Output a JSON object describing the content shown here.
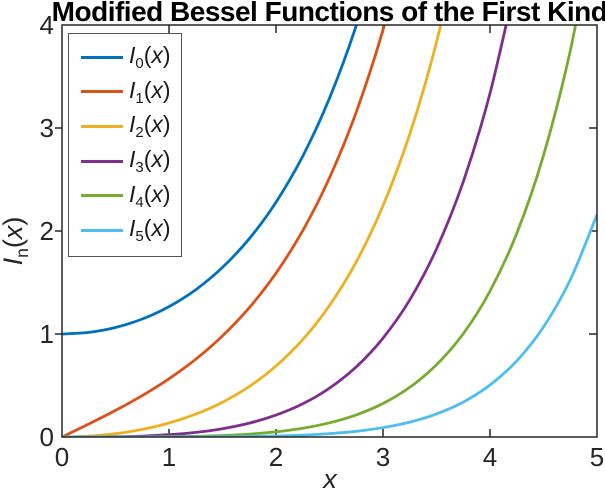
{
  "title": "Modified Bessel Functions of the First Kind",
  "xlabel": "x",
  "ylabel": {
    "base": "I",
    "sub": "n",
    "open": "(",
    "var": "x",
    "close": ")"
  },
  "axis_color": "#262626",
  "chart_data": {
    "type": "line",
    "title": "Modified Bessel Functions of the First Kind",
    "xlabel": "x",
    "ylabel": "I_n(x)",
    "xlim": [
      0,
      5
    ],
    "ylim": [
      0,
      4
    ],
    "xticks": [
      0,
      1,
      2,
      3,
      4,
      5
    ],
    "yticks": [
      0,
      1,
      2,
      3,
      4
    ],
    "grid": false,
    "legend_position": "top-left",
    "x": [
      0,
      0.25,
      0.5,
      0.75,
      1,
      1.25,
      1.5,
      1.75,
      2,
      2.25,
      2.5,
      2.75,
      3,
      3.25,
      3.5,
      3.75,
      4,
      4.25,
      4.5,
      4.75,
      5
    ],
    "series": [
      {
        "name": "I_0(x)",
        "base": "I",
        "sub": "0",
        "open": "(",
        "var": "x",
        "close": ")",
        "color": "#0072BD",
        "values": [
          1.0,
          1.0157,
          1.0635,
          1.1456,
          1.2661,
          1.4305,
          1.6467,
          1.9253,
          2.2796,
          2.7271,
          3.2898,
          3.9959,
          4.8808,
          null,
          null,
          null,
          null,
          null,
          null,
          null,
          null
        ]
      },
      {
        "name": "I_1(x)",
        "base": "I",
        "sub": "1",
        "open": "(",
        "var": "x",
        "close": ")",
        "color": "#D95319",
        "values": [
          0,
          0.126,
          0.2579,
          0.402,
          0.5652,
          0.7553,
          0.9817,
          1.2555,
          1.5906,
          2.004,
          2.5167,
          3.1554,
          3.9534,
          4.9525,
          null,
          null,
          null,
          null,
          null,
          null,
          null
        ]
      },
      {
        "name": "I_2(x)",
        "base": "I",
        "sub": "2",
        "open": "(",
        "var": "x",
        "close": ")",
        "color": "#EDB120",
        "values": [
          0,
          0.0079,
          0.0319,
          0.0737,
          0.1357,
          0.222,
          0.3378,
          0.4904,
          0.6889,
          0.9457,
          1.2765,
          1.7011,
          2.2452,
          2.9416,
          3.832,
          4.9696,
          null,
          null,
          null,
          null,
          null
        ]
      },
      {
        "name": "I_3(x)",
        "base": "I",
        "sub": "3",
        "open": "(",
        "var": "x",
        "close": ")",
        "color": "#7E2F8E",
        "values": [
          0,
          0.0003,
          0.0026,
          0.0091,
          0.0222,
          0.0448,
          0.0808,
          0.1347,
          0.2127,
          0.3226,
          0.4744,
          0.6811,
          0.9598,
          1.3321,
          1.8264,
          2.479,
          3.3373,
          4.4616,
          null,
          null,
          null
        ]
      },
      {
        "name": "I_4(x)",
        "base": "I",
        "sub": "4",
        "open": "(",
        "var": "x",
        "close": ")",
        "color": "#77AC30",
        "values": [
          0,
          1e-05,
          0.00016,
          0.00085,
          0.0027,
          0.0069,
          0.0147,
          0.0284,
          0.0507,
          0.0855,
          0.138,
          0.215,
          0.3257,
          0.4824,
          0.701,
          1.0031,
          1.4163,
          1.9775,
          2.7347,
          3.7509,
          5.1082
        ]
      },
      {
        "name": "I_5(x)",
        "base": "I",
        "sub": "5",
        "open": "(",
        "var": "x",
        "close": ")",
        "color": "#4DBEEE",
        "values": [
          0,
          0,
          1e-05,
          6e-05,
          0.0003,
          0.0008,
          0.0022,
          0.0049,
          0.0098,
          0.0185,
          0.0328,
          0.0557,
          0.0912,
          0.1448,
          0.224,
          0.3393,
          0.5047,
          0.7393,
          1.0683,
          1.5261,
          2.158
        ]
      }
    ]
  }
}
